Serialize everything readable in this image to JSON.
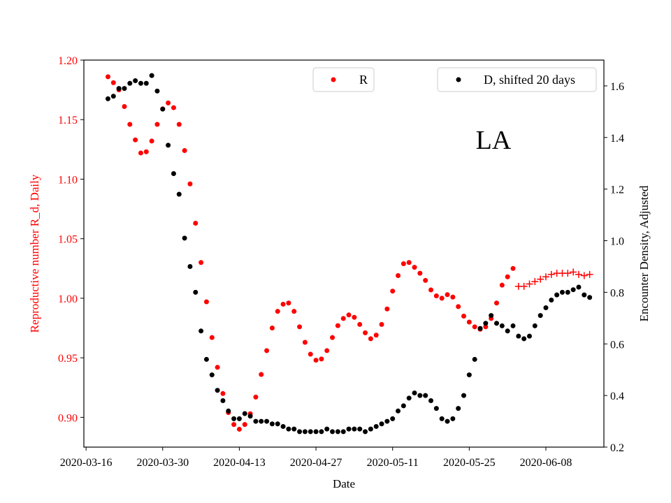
{
  "chart_data": {
    "type": "scatter",
    "title": "",
    "annotation": "LA",
    "xlabel": "Date",
    "ylabel_left": "Reproductive number R_d, Daily",
    "ylabel_right": "Encounter Density, Adjusted",
    "x_ticks": [
      "2020-03-16",
      "2020-03-30",
      "2020-04-13",
      "2020-04-27",
      "2020-05-11",
      "2020-05-25",
      "2020-06-08"
    ],
    "y_left_ticks": [
      "0.90",
      "0.95",
      "1.00",
      "1.05",
      "1.10",
      "1.15",
      "1.20"
    ],
    "y_right_ticks": [
      "0.2",
      "0.4",
      "0.6",
      "0.8",
      "1.0",
      "1.2",
      "1.4",
      "1.6"
    ],
    "xlim_days": [
      -0.4,
      94.6
    ],
    "ylim_left": [
      0.875,
      1.2
    ],
    "ylim_right": [
      0.2,
      1.7
    ],
    "grid": false,
    "legends": [
      {
        "label": "R",
        "placement": "top-center"
      },
      {
        "label": "D, shifted 20 days",
        "placement": "top-right"
      }
    ],
    "colors": {
      "R": "#ff0000",
      "D": "#000000",
      "axis_left": "#ff0000",
      "axis": "#000000"
    },
    "series": [
      {
        "name": "R",
        "axis": "left",
        "marker": "dot",
        "x": [
          4,
          5,
          6,
          7,
          8,
          9,
          10,
          11,
          12,
          13,
          14,
          15,
          16,
          17,
          18,
          19,
          20,
          21,
          22,
          23,
          24,
          25,
          26,
          27,
          28,
          29,
          30,
          31,
          32,
          33,
          34,
          35,
          36,
          37,
          38,
          39,
          40,
          41,
          42,
          43,
          44,
          45,
          46,
          47,
          48,
          49,
          50,
          51,
          52,
          53,
          54,
          55,
          56,
          57,
          58,
          59,
          60,
          61,
          62,
          63,
          64,
          65,
          66,
          67,
          68,
          69,
          70,
          71,
          72,
          73,
          74,
          75,
          76,
          77,
          78
        ],
        "y": [
          1.186,
          1.181,
          1.175,
          1.161,
          1.146,
          1.133,
          1.122,
          1.123,
          1.132,
          1.146,
          1.159,
          1.164,
          1.16,
          1.146,
          1.124,
          1.096,
          1.063,
          1.03,
          0.997,
          0.967,
          0.942,
          0.92,
          0.904,
          0.894,
          0.89,
          0.894,
          0.903,
          0.917,
          0.936,
          0.956,
          0.975,
          0.989,
          0.995,
          0.996,
          0.989,
          0.976,
          0.963,
          0.953,
          0.948,
          0.949,
          0.956,
          0.967,
          0.977,
          0.983,
          0.986,
          0.984,
          0.978,
          0.971,
          0.966,
          0.969,
          0.978,
          0.991,
          1.006,
          1.019,
          1.029,
          1.03,
          1.026,
          1.021,
          1.015,
          1.007,
          1.002,
          1.0,
          1.003,
          1.001,
          0.993,
          0.985,
          0.98,
          0.976,
          0.974,
          0.976,
          0.983,
          0.996,
          1.011,
          1.018,
          1.025
        ]
      },
      {
        "name": "R",
        "axis": "left",
        "marker": "plus",
        "x": [
          79,
          80,
          81,
          82,
          83,
          84,
          85,
          86,
          87,
          88,
          89,
          90,
          91,
          92
        ],
        "y": [
          1.01,
          1.01,
          1.012,
          1.014,
          1.016,
          1.018,
          1.02,
          1.021,
          1.021,
          1.021,
          1.022,
          1.02,
          1.019,
          1.02
        ]
      },
      {
        "name": "D, shifted 20 days",
        "axis": "right",
        "marker": "dot",
        "x": [
          4,
          5,
          6,
          7,
          8,
          9,
          10,
          11,
          12,
          13,
          14,
          15,
          16,
          17,
          18,
          19,
          20,
          21,
          22,
          23,
          24,
          25,
          26,
          27,
          28,
          29,
          30,
          31,
          32,
          33,
          34,
          35,
          36,
          37,
          38,
          39,
          40,
          41,
          42,
          43,
          44,
          45,
          46,
          47,
          48,
          49,
          50,
          51,
          52,
          53,
          54,
          55,
          56,
          57,
          58,
          59,
          60,
          61,
          62,
          63,
          64,
          65,
          66,
          67,
          68,
          69,
          70,
          71,
          72,
          73,
          74,
          75,
          76,
          77,
          78,
          79,
          80,
          81,
          82,
          83,
          84,
          85,
          86,
          87,
          88,
          89,
          90,
          91,
          92
        ],
        "y": [
          1.55,
          1.56,
          1.59,
          1.59,
          1.61,
          1.62,
          1.61,
          1.61,
          1.64,
          1.58,
          1.51,
          1.37,
          1.26,
          1.18,
          1.01,
          0.9,
          0.8,
          0.65,
          0.54,
          0.48,
          0.42,
          0.38,
          0.34,
          0.31,
          0.31,
          0.33,
          0.32,
          0.3,
          0.3,
          0.3,
          0.29,
          0.29,
          0.28,
          0.27,
          0.27,
          0.26,
          0.26,
          0.26,
          0.26,
          0.26,
          0.27,
          0.26,
          0.26,
          0.26,
          0.27,
          0.27,
          0.27,
          0.26,
          0.27,
          0.28,
          0.29,
          0.3,
          0.31,
          0.34,
          0.36,
          0.39,
          0.41,
          0.4,
          0.4,
          0.38,
          0.35,
          0.31,
          0.3,
          0.31,
          0.35,
          0.4,
          0.48,
          0.54,
          0.66,
          0.68,
          0.71,
          0.68,
          0.67,
          0.65,
          0.67,
          0.63,
          0.62,
          0.63,
          0.67,
          0.71,
          0.74,
          0.77,
          0.79,
          0.8,
          0.8,
          0.81,
          0.82,
          0.79,
          0.78
        ]
      }
    ]
  }
}
